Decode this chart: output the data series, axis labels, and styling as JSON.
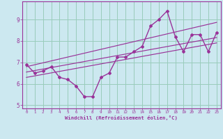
{
  "xlabel": "Windchill (Refroidissement éolien,°C)",
  "background_color": "#cce8f0",
  "grid_color": "#99ccbb",
  "line_color": "#993399",
  "hours": [
    0,
    1,
    2,
    3,
    4,
    5,
    6,
    7,
    8,
    9,
    10,
    11,
    12,
    13,
    14,
    15,
    16,
    17,
    18,
    19,
    20,
    21,
    22,
    23
  ],
  "windchill": [
    6.9,
    6.5,
    6.6,
    6.8,
    6.3,
    6.2,
    5.9,
    5.4,
    5.4,
    6.3,
    6.5,
    7.25,
    7.25,
    7.5,
    7.75,
    8.7,
    9.0,
    9.4,
    8.2,
    7.5,
    8.3,
    8.3,
    7.5,
    8.4
  ],
  "reg_line_mid": [
    6.55,
    6.62,
    6.69,
    6.76,
    6.83,
    6.9,
    6.97,
    7.04,
    7.11,
    7.18,
    7.25,
    7.32,
    7.39,
    7.46,
    7.53,
    7.6,
    7.67,
    7.74,
    7.81,
    7.88,
    7.95,
    8.02,
    8.09,
    8.16
  ],
  "reg_line_upper": [
    6.8,
    6.89,
    6.98,
    7.07,
    7.16,
    7.25,
    7.34,
    7.43,
    7.52,
    7.61,
    7.7,
    7.79,
    7.88,
    7.97,
    8.06,
    8.15,
    8.24,
    8.33,
    8.42,
    8.51,
    8.6,
    8.69,
    8.78,
    8.87
  ],
  "reg_line_lower": [
    6.3,
    6.37,
    6.44,
    6.51,
    6.58,
    6.65,
    6.72,
    6.79,
    6.86,
    6.93,
    7.0,
    7.07,
    7.14,
    7.21,
    7.28,
    7.35,
    7.42,
    7.49,
    7.56,
    7.63,
    7.7,
    7.77,
    7.84,
    7.91
  ],
  "ylim": [
    4.85,
    9.85
  ],
  "yticks": [
    5,
    6,
    7,
    8,
    9
  ],
  "xticks": [
    0,
    1,
    2,
    3,
    4,
    5,
    6,
    7,
    8,
    9,
    10,
    11,
    12,
    13,
    14,
    15,
    16,
    17,
    18,
    19,
    20,
    21,
    22,
    23
  ]
}
